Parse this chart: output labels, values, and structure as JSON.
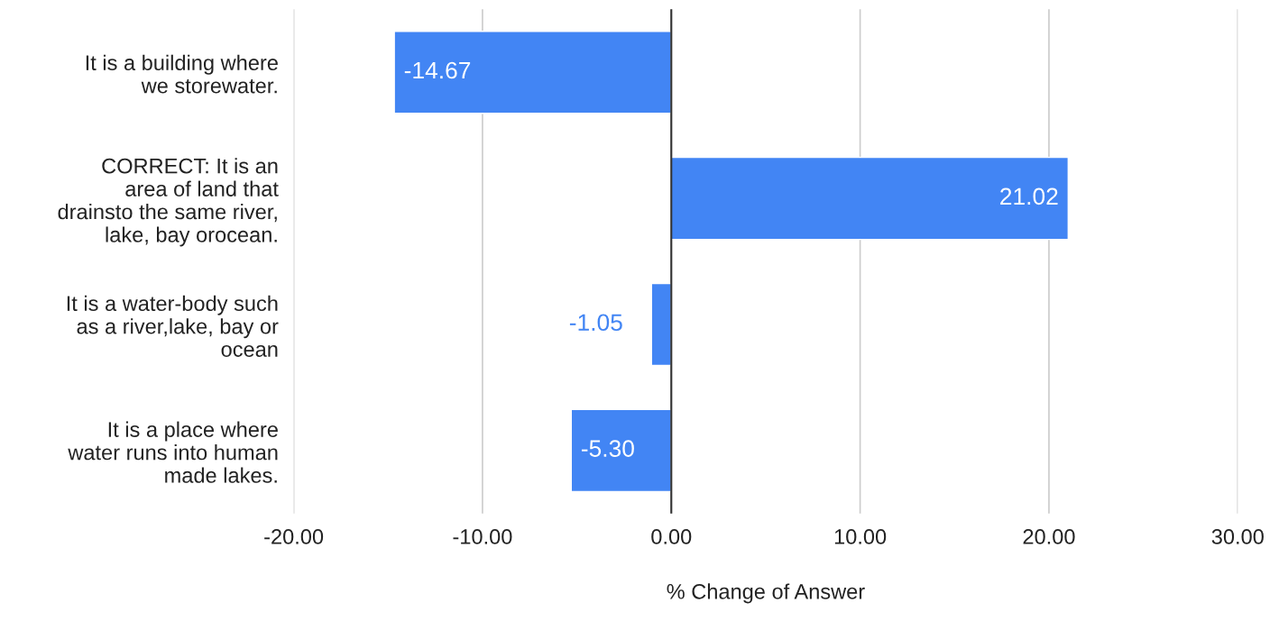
{
  "chart_data": {
    "type": "bar",
    "orientation": "horizontal",
    "xlabel": "% Change of Answer",
    "categories": [
      "It is a building where\nwe storewater.",
      "CORRECT: It is an\narea of land that\ndrainsto the same river,\nlake, bay orocean.",
      "It is a water-body such\nas a river,lake, bay or\nocean",
      "It is a place where\nwater runs into human\nmade lakes."
    ],
    "values": [
      -14.67,
      21.02,
      -1.05,
      -5.3
    ],
    "value_labels": [
      "-14.67",
      "21.02",
      "-1.05",
      "-5.30"
    ],
    "color": "#4285f4",
    "xlim": [
      -20,
      30
    ],
    "xticks": [
      {
        "value": -20,
        "label": "-20.00"
      },
      {
        "value": -10,
        "label": "-10.00"
      },
      {
        "value": 0,
        "label": "0.00"
      },
      {
        "value": 10,
        "label": "10.00"
      },
      {
        "value": 20,
        "label": "20.00"
      },
      {
        "value": 30,
        "label": "30.00"
      }
    ],
    "grid": "x",
    "legend": false
  }
}
